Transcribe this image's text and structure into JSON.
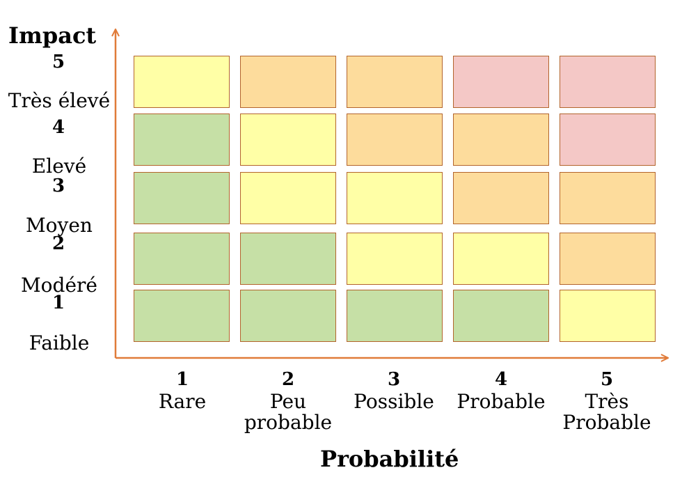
{
  "y_axis": {
    "title": "Impact",
    "levels": [
      {
        "num": "5",
        "label": "Très élevé"
      },
      {
        "num": "4",
        "label": "Elevé"
      },
      {
        "num": "3",
        "label": "Moyen"
      },
      {
        "num": "2",
        "label": "Modéré"
      },
      {
        "num": "1",
        "label": "Faible"
      }
    ]
  },
  "x_axis": {
    "title": "Probabilité",
    "levels": [
      {
        "num": "1",
        "label": "Rare"
      },
      {
        "num": "2",
        "label": "Peu probable"
      },
      {
        "num": "3",
        "label": "Possible"
      },
      {
        "num": "4",
        "label": "Probable"
      },
      {
        "num": "5",
        "label": "Très Probable"
      }
    ]
  },
  "colors": {
    "green": "#c6e0a6",
    "yellow": "#ffffa6",
    "orange": "#fddc9c",
    "red": "#f4c8c6",
    "axis": "#e07b39",
    "cell_border": "#b3642c"
  },
  "matrix": [
    [
      "yellow",
      "orange",
      "orange",
      "red",
      "red"
    ],
    [
      "green",
      "yellow",
      "orange",
      "orange",
      "red"
    ],
    [
      "green",
      "yellow",
      "yellow",
      "orange",
      "orange"
    ],
    [
      "green",
      "green",
      "yellow",
      "yellow",
      "orange"
    ],
    [
      "green",
      "green",
      "green",
      "green",
      "yellow"
    ]
  ]
}
